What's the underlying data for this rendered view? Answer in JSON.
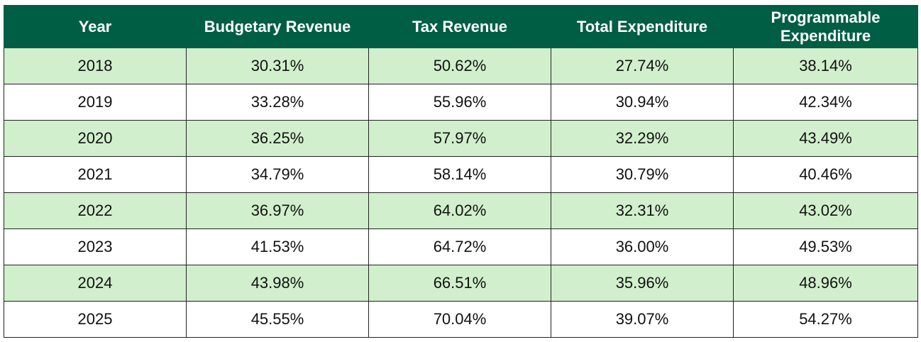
{
  "colors": {
    "header_bg": "#005e44",
    "header_text": "#ffffff",
    "row_alt_bg": "#d1efcc",
    "row_bg": "#ffffff"
  },
  "chart_data": {
    "type": "table",
    "columns": [
      "Year",
      "Budgetary Revenue",
      "Tax Revenue",
      "Total Expenditure",
      "Programmable Expenditure"
    ],
    "rows": [
      [
        "2018",
        "30.31%",
        "50.62%",
        "27.74%",
        "38.14%"
      ],
      [
        "2019",
        "33.28%",
        "55.96%",
        "30.94%",
        "42.34%"
      ],
      [
        "2020",
        "36.25%",
        "57.97%",
        "32.29%",
        "43.49%"
      ],
      [
        "2021",
        "34.79%",
        "58.14%",
        "30.79%",
        "40.46%"
      ],
      [
        "2022",
        "36.97%",
        "64.02%",
        "32.31%",
        "43.02%"
      ],
      [
        "2023",
        "41.53%",
        "64.72%",
        "36.00%",
        "49.53%"
      ],
      [
        "2024",
        "43.98%",
        "66.51%",
        "35.96%",
        "48.96%"
      ],
      [
        "2025",
        "45.55%",
        "70.04%",
        "39.07%",
        "54.27%"
      ]
    ]
  }
}
